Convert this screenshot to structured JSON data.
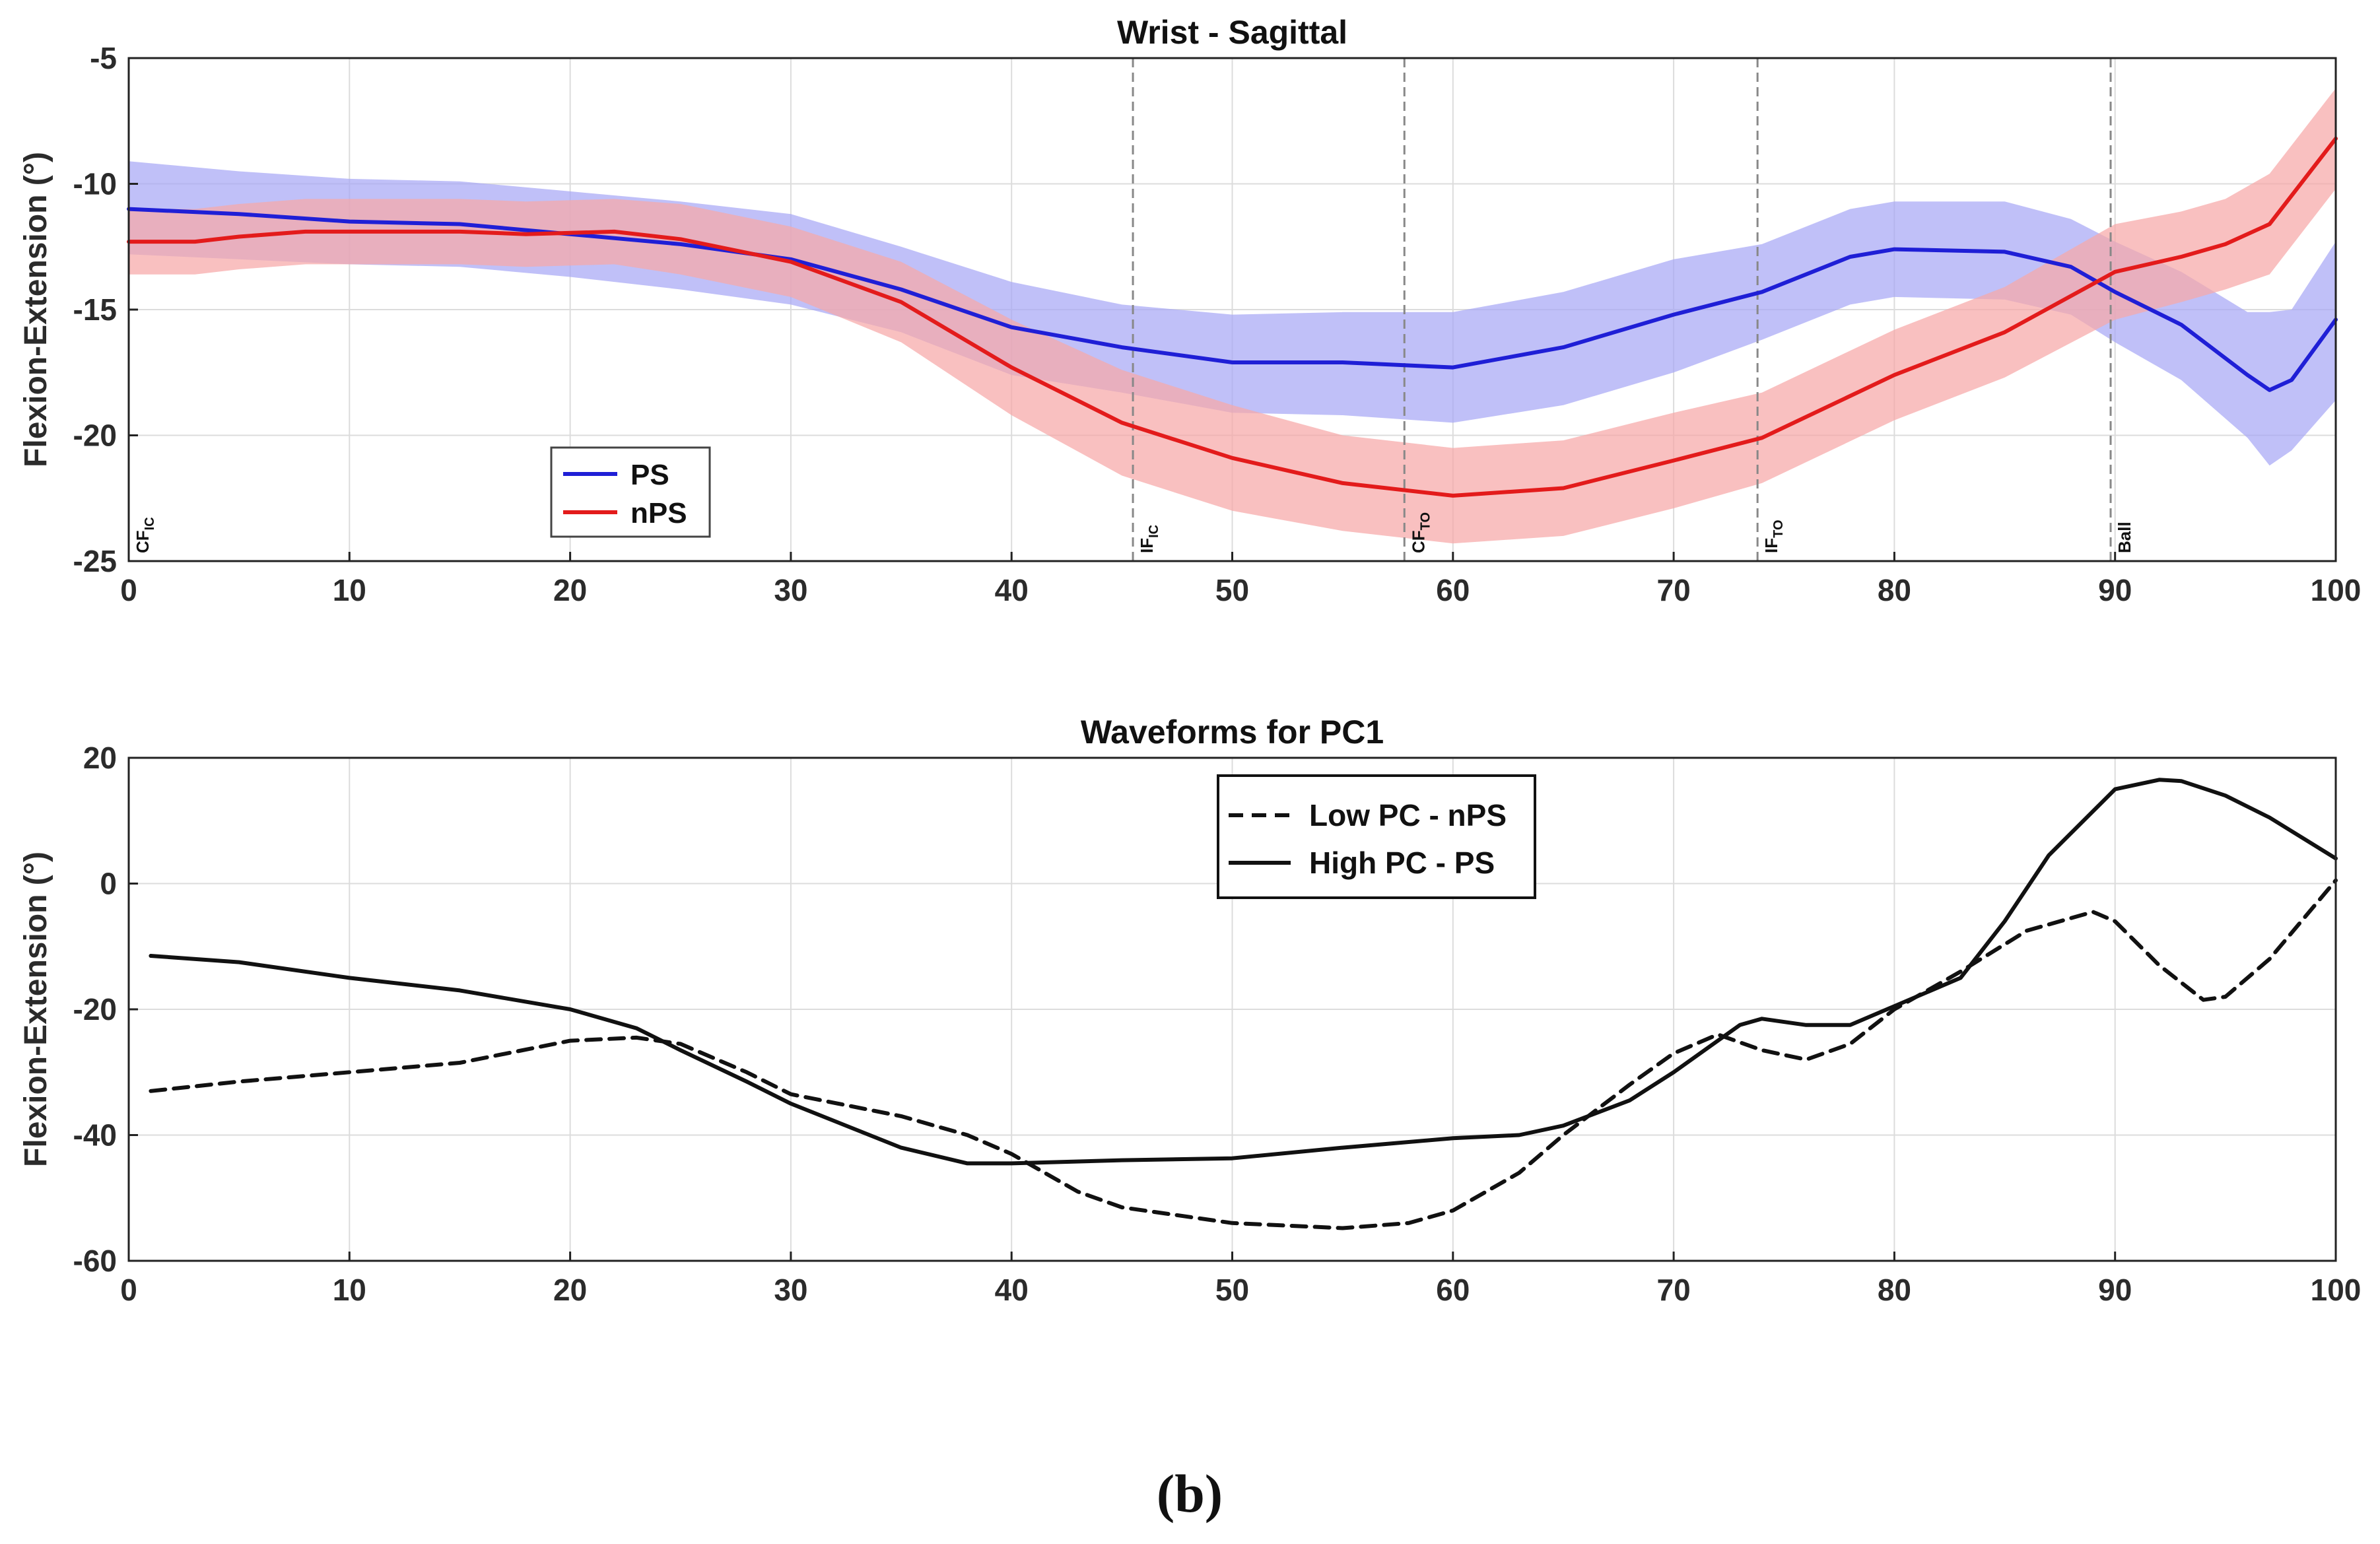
{
  "chart_data": [
    {
      "type": "line",
      "title": "Wrist - Sagittal",
      "xlabel": "",
      "ylabel": "Flexion-Extension (°)",
      "xlim": [
        0,
        100
      ],
      "ylim": [
        -25,
        -5
      ],
      "xticks": [
        0,
        10,
        20,
        30,
        40,
        50,
        60,
        70,
        80,
        90,
        100
      ],
      "yticks": [
        -5,
        -10,
        -15,
        -20,
        -25
      ],
      "grid": true,
      "legend_position": "lower-left",
      "series": [
        {
          "name": "PS",
          "color": "#1f1fd6",
          "band_color": "#a7a7f5",
          "x": [
            0,
            5,
            10,
            15,
            20,
            25,
            30,
            35,
            40,
            45,
            50,
            55,
            60,
            65,
            70,
            74,
            78,
            80,
            85,
            88,
            90,
            93,
            96,
            97,
            98,
            100
          ],
          "values": [
            -11.0,
            -11.2,
            -11.5,
            -11.6,
            -12.0,
            -12.4,
            -13.0,
            -14.2,
            -15.7,
            -16.5,
            -17.1,
            -17.1,
            -17.3,
            -16.5,
            -15.2,
            -14.3,
            -12.9,
            -12.6,
            -12.7,
            -13.3,
            -14.3,
            -15.6,
            -17.6,
            -18.2,
            -17.8,
            -15.4
          ],
          "lower": [
            -12.8,
            -13.0,
            -13.2,
            -13.3,
            -13.7,
            -14.2,
            -14.8,
            -15.9,
            -17.6,
            -18.3,
            -19.1,
            -19.2,
            -19.5,
            -18.8,
            -17.5,
            -16.2,
            -14.8,
            -14.5,
            -14.6,
            -15.2,
            -16.3,
            -17.8,
            -20.1,
            -21.2,
            -20.6,
            -18.6
          ],
          "upper": [
            -9.1,
            -9.5,
            -9.8,
            -9.9,
            -10.3,
            -10.7,
            -11.2,
            -12.5,
            -13.9,
            -14.8,
            -15.2,
            -15.1,
            -15.1,
            -14.3,
            -13.0,
            -12.4,
            -11.0,
            -10.7,
            -10.7,
            -11.4,
            -12.3,
            -13.5,
            -15.1,
            -15.1,
            -15.0,
            -12.3
          ]
        },
        {
          "name": "nPS",
          "color": "#e31b1b",
          "band_color": "#f6a7a7",
          "x": [
            0,
            3,
            5,
            8,
            10,
            15,
            18,
            22,
            25,
            30,
            35,
            40,
            45,
            50,
            55,
            60,
            65,
            70,
            74,
            80,
            85,
            90,
            93,
            95,
            97,
            100
          ],
          "values": [
            -12.3,
            -12.3,
            -12.1,
            -11.9,
            -11.9,
            -11.9,
            -12.0,
            -11.9,
            -12.2,
            -13.1,
            -14.7,
            -17.3,
            -19.5,
            -20.9,
            -21.9,
            -22.4,
            -22.1,
            -21.0,
            -20.1,
            -17.6,
            -15.9,
            -13.5,
            -12.9,
            -12.4,
            -11.6,
            -8.2
          ],
          "lower": [
            -13.6,
            -13.6,
            -13.4,
            -13.2,
            -13.2,
            -13.2,
            -13.3,
            -13.2,
            -13.6,
            -14.5,
            -16.3,
            -19.2,
            -21.6,
            -23.0,
            -23.8,
            -24.3,
            -24.0,
            -22.9,
            -21.9,
            -19.4,
            -17.7,
            -15.4,
            -14.7,
            -14.2,
            -13.6,
            -10.2
          ],
          "upper": [
            -11.0,
            -11.0,
            -10.8,
            -10.6,
            -10.6,
            -10.6,
            -10.7,
            -10.6,
            -10.8,
            -11.7,
            -13.1,
            -15.4,
            -17.4,
            -18.8,
            -20.0,
            -20.5,
            -20.2,
            -19.1,
            -18.3,
            -15.8,
            -14.1,
            -11.6,
            -11.1,
            -10.6,
            -9.6,
            -6.2
          ]
        }
      ],
      "event_markers": [
        {
          "x": 0,
          "label": "CF",
          "sub": "IC",
          "dashed": false
        },
        {
          "x": 45.5,
          "label": "IF",
          "sub": "IC",
          "dashed": true
        },
        {
          "x": 57.8,
          "label": "CF",
          "sub": "TO",
          "dashed": true
        },
        {
          "x": 73.8,
          "label": "IF",
          "sub": "TO",
          "dashed": true
        },
        {
          "x": 89.8,
          "label": "Ball",
          "sub": "",
          "dashed": true
        }
      ],
      "legend": [
        {
          "label": "PS",
          "color": "#1f1fd6"
        },
        {
          "label": "nPS",
          "color": "#e31b1b"
        }
      ]
    },
    {
      "type": "line",
      "title": "Waveforms for PC1",
      "xlabel": "",
      "ylabel": "Flexion-Extension (°)",
      "xlim": [
        0,
        100
      ],
      "ylim": [
        -60,
        20
      ],
      "xticks": [
        0,
        10,
        20,
        30,
        40,
        50,
        60,
        70,
        80,
        90,
        100
      ],
      "yticks": [
        20,
        0,
        -20,
        -40,
        -60
      ],
      "grid": true,
      "legend_position": "top-right",
      "series": [
        {
          "name": "Low PC - nPS",
          "style": "dashed",
          "color": "#111111",
          "x": [
            1,
            5,
            10,
            15,
            20,
            23,
            25,
            28,
            30,
            35,
            38,
            40,
            43,
            45,
            50,
            55,
            58,
            60,
            63,
            65,
            68,
            70,
            72,
            74,
            76,
            78,
            80,
            83,
            86,
            89,
            90,
            92,
            94,
            95,
            97,
            100
          ],
          "values": [
            -33,
            -31.5,
            -30,
            -28.5,
            -25,
            -24.5,
            -25.5,
            -30,
            -33.5,
            -37,
            -40,
            -43,
            -49,
            -51.5,
            -54,
            -54.8,
            -54,
            -52,
            -46,
            -40,
            -32,
            -27,
            -24,
            -26.5,
            -28,
            -25.5,
            -20,
            -14,
            -7.5,
            -4.5,
            -6,
            -13,
            -18.5,
            -18,
            -12,
            0.5
          ]
        },
        {
          "name": "High PC - PS",
          "style": "solid",
          "color": "#111111",
          "x": [
            1,
            5,
            10,
            15,
            20,
            23,
            25,
            28,
            30,
            35,
            38,
            40,
            45,
            50,
            55,
            60,
            63,
            65,
            68,
            70,
            72,
            73,
            74,
            76,
            78,
            80,
            83,
            85,
            87,
            90,
            92,
            93,
            95,
            97,
            100
          ],
          "values": [
            -11.5,
            -12.5,
            -15,
            -17,
            -20,
            -23,
            -26.5,
            -31.5,
            -35,
            -42,
            -44.5,
            -44.5,
            -44,
            -43.7,
            -42,
            -40.5,
            -40,
            -38.5,
            -34.5,
            -30,
            -25,
            -22.5,
            -21.5,
            -22.5,
            -22.5,
            -19.5,
            -15,
            -6,
            4.5,
            15,
            16.5,
            16.3,
            14,
            10.5,
            4
          ]
        }
      ],
      "legend": [
        {
          "label": "Low PC - nPS",
          "style": "dashed"
        },
        {
          "label": "High PC - PS",
          "style": "solid"
        }
      ]
    }
  ],
  "caption": "(b)"
}
